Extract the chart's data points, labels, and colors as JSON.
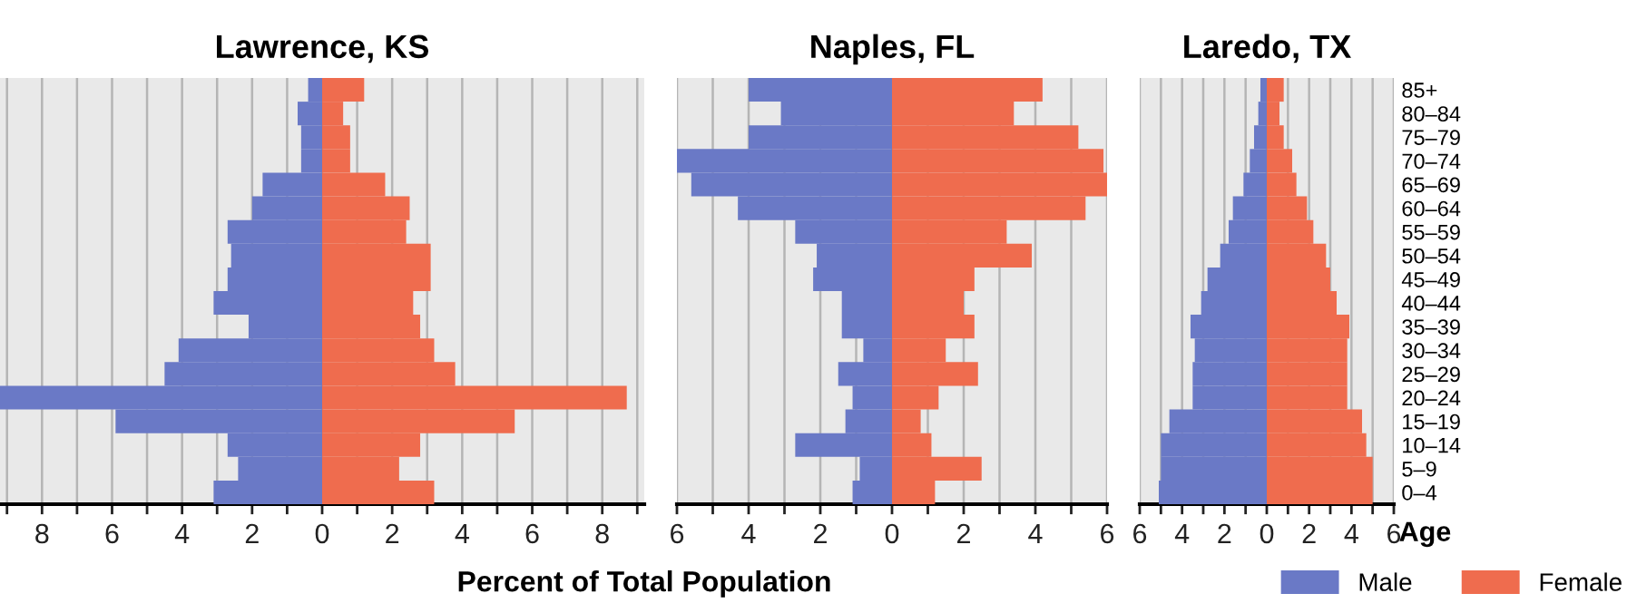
{
  "chart_data": [
    {
      "type": "bar",
      "title": "Lawrence, KS",
      "xlabel": "Percent of Total Population",
      "orientation": "horizontal",
      "stacked": true,
      "tick_labels": "x",
      "grid": "x",
      "legend": false,
      "categories": [
        null,
        null,
        null,
        null,
        null,
        null,
        null,
        null,
        null,
        null,
        null,
        null,
        null,
        null,
        null,
        null,
        null,
        null
      ],
      "xlim": [
        -9.2,
        9.2
      ],
      "xticks": [
        {
          "value": -9,
          "label": null
        },
        {
          "value": -8,
          "label": "8"
        },
        {
          "value": -7,
          "label": null
        },
        {
          "value": -6,
          "label": "6"
        },
        {
          "value": -5,
          "label": null
        },
        {
          "value": -4,
          "label": "4"
        },
        {
          "value": -3,
          "label": null
        },
        {
          "value": -2,
          "label": "2"
        },
        {
          "value": -1,
          "label": null
        },
        0,
        {
          "value": 1,
          "label": null
        },
        2,
        {
          "value": 3,
          "label": null
        },
        4,
        {
          "value": 5,
          "label": null
        },
        6,
        {
          "value": 7,
          "label": null
        },
        8,
        {
          "value": 9,
          "label": null
        }
      ],
      "series": [
        {
          "color": "#6a79c6",
          "values": [
            -0.4,
            -0.7,
            -0.6,
            -0.6,
            -1.7,
            -2.0,
            -2.7,
            -2.6,
            -2.7,
            -3.1,
            -2.1,
            -4.1,
            -4.5,
            -9.2,
            -5.9,
            -2.7,
            -2.4,
            -3.1
          ]
        },
        {
          "color": "#ef6c4e",
          "values": [
            1.2,
            0.6,
            0.8,
            0.8,
            1.8,
            2.5,
            2.4,
            3.1,
            3.1,
            2.6,
            2.8,
            3.2,
            3.8,
            8.7,
            5.5,
            2.8,
            2.2,
            3.2
          ]
        }
      ]
    },
    {
      "type": "bar",
      "title": "Naples, FL",
      "orientation": "horizontal",
      "stacked": true,
      "tick_labels": "x",
      "grid": "x",
      "legend": false,
      "categories": [
        null,
        null,
        null,
        null,
        null,
        null,
        null,
        null,
        null,
        null,
        null,
        null,
        null,
        null,
        null,
        null,
        null,
        null
      ],
      "xlim": [
        -6,
        6
      ],
      "xticks": [
        {
          "value": -6,
          "label": "6"
        },
        {
          "value": -5,
          "label": null
        },
        {
          "value": -4,
          "label": "4"
        },
        {
          "value": -3,
          "label": null
        },
        {
          "value": -2,
          "label": "2"
        },
        {
          "value": -1,
          "label": null
        },
        0,
        {
          "value": 1,
          "label": null
        },
        2,
        {
          "value": 3,
          "label": null
        },
        4,
        {
          "value": 5,
          "label": null
        },
        6
      ],
      "series": [
        {
          "color": "#6a79c6",
          "values": [
            -4.0,
            -3.1,
            -4.0,
            -6.0,
            -5.6,
            -4.3,
            -2.7,
            -2.1,
            -2.2,
            -1.4,
            -1.4,
            -0.8,
            -1.5,
            -1.1,
            -1.3,
            -2.7,
            -0.9,
            -1.1
          ]
        },
        {
          "color": "#ef6c4e",
          "values": [
            4.2,
            3.4,
            5.2,
            5.9,
            6.0,
            5.4,
            3.2,
            3.9,
            2.3,
            2.0,
            2.3,
            1.5,
            2.4,
            1.3,
            0.8,
            1.1,
            2.5,
            1.2
          ]
        }
      ]
    },
    {
      "type": "bar",
      "title": "Laredo, TX",
      "ylabel": "Age",
      "orientation": "horizontal",
      "stacked": true,
      "grid": "x",
      "legend": "bottom right",
      "categories": [
        "85+",
        "80–84",
        "75–79",
        "70–74",
        "65–69",
        "60–64",
        "55–59",
        "50–54",
        "45–49",
        "40–44",
        "35–39",
        "30–34",
        "25–29",
        "20–24",
        "15–19",
        "10–14",
        "5–9",
        "0–4"
      ],
      "xlim": [
        -6,
        6
      ],
      "xticks": [
        {
          "value": -6,
          "label": "6"
        },
        {
          "value": -5,
          "label": null
        },
        {
          "value": -4,
          "label": "4"
        },
        {
          "value": -3,
          "label": null
        },
        {
          "value": -2,
          "label": "2"
        },
        {
          "value": -1,
          "label": null
        },
        0,
        {
          "value": 1,
          "label": null
        },
        2,
        {
          "value": 3,
          "label": null
        },
        4,
        {
          "value": 5,
          "label": null
        },
        6
      ],
      "series": [
        {
          "name": "Male",
          "color": "#6a79c6",
          "values": [
            -0.3,
            -0.4,
            -0.6,
            -0.8,
            -1.1,
            -1.6,
            -1.8,
            -2.2,
            -2.8,
            -3.1,
            -3.6,
            -3.4,
            -3.5,
            -3.5,
            -4.6,
            -5.0,
            -5.0,
            -5.1
          ]
        },
        {
          "name": "Female",
          "color": "#ef6c4e",
          "values": [
            0.8,
            0.6,
            0.8,
            1.2,
            1.4,
            1.9,
            2.2,
            2.8,
            3.0,
            3.3,
            3.9,
            3.8,
            3.8,
            3.8,
            4.5,
            4.7,
            5.0,
            5.0
          ]
        }
      ]
    }
  ]
}
